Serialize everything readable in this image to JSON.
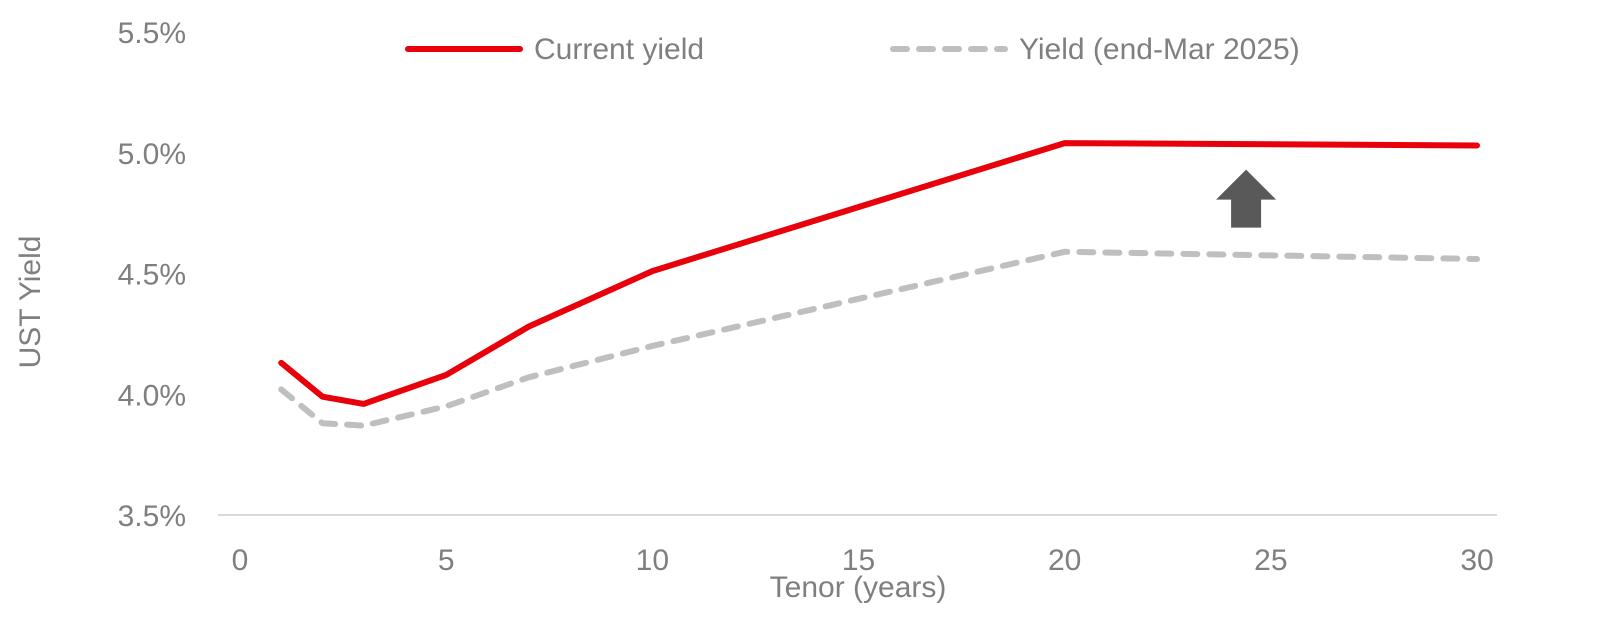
{
  "chart_data": {
    "type": "line",
    "xlabel": "Tenor (years)",
    "ylabel": "UST Yield",
    "xlim": [
      0,
      30
    ],
    "ylim": [
      3.5,
      5.5
    ],
    "x_ticks": [
      0,
      5,
      10,
      15,
      20,
      25,
      30
    ],
    "y_ticks": [
      3.5,
      4.0,
      4.5,
      5.0,
      5.5
    ],
    "y_tick_labels": [
      "3.5%",
      "4.0%",
      "4.5%",
      "5.0%",
      "5.5%"
    ],
    "grid": false,
    "legend_position": "top",
    "series": [
      {
        "name": "Current yield",
        "color": "#e8000b",
        "style": "solid",
        "x": [
          1,
          2,
          3,
          5,
          7,
          10,
          20,
          30
        ],
        "values": [
          4.13,
          3.99,
          3.96,
          4.08,
          4.28,
          4.51,
          5.04,
          5.03
        ]
      },
      {
        "name": "Yield (end-Mar 2025)",
        "color": "#bfbfbf",
        "style": "dashed",
        "x": [
          1,
          2,
          3,
          5,
          7,
          10,
          20,
          30
        ],
        "values": [
          4.02,
          3.88,
          3.87,
          3.95,
          4.07,
          4.2,
          4.59,
          4.56
        ]
      }
    ],
    "annotations": [
      {
        "type": "arrow-up",
        "color": "#595959",
        "x": 24.4,
        "y_from": 4.69,
        "y_to": 4.93
      }
    ]
  }
}
